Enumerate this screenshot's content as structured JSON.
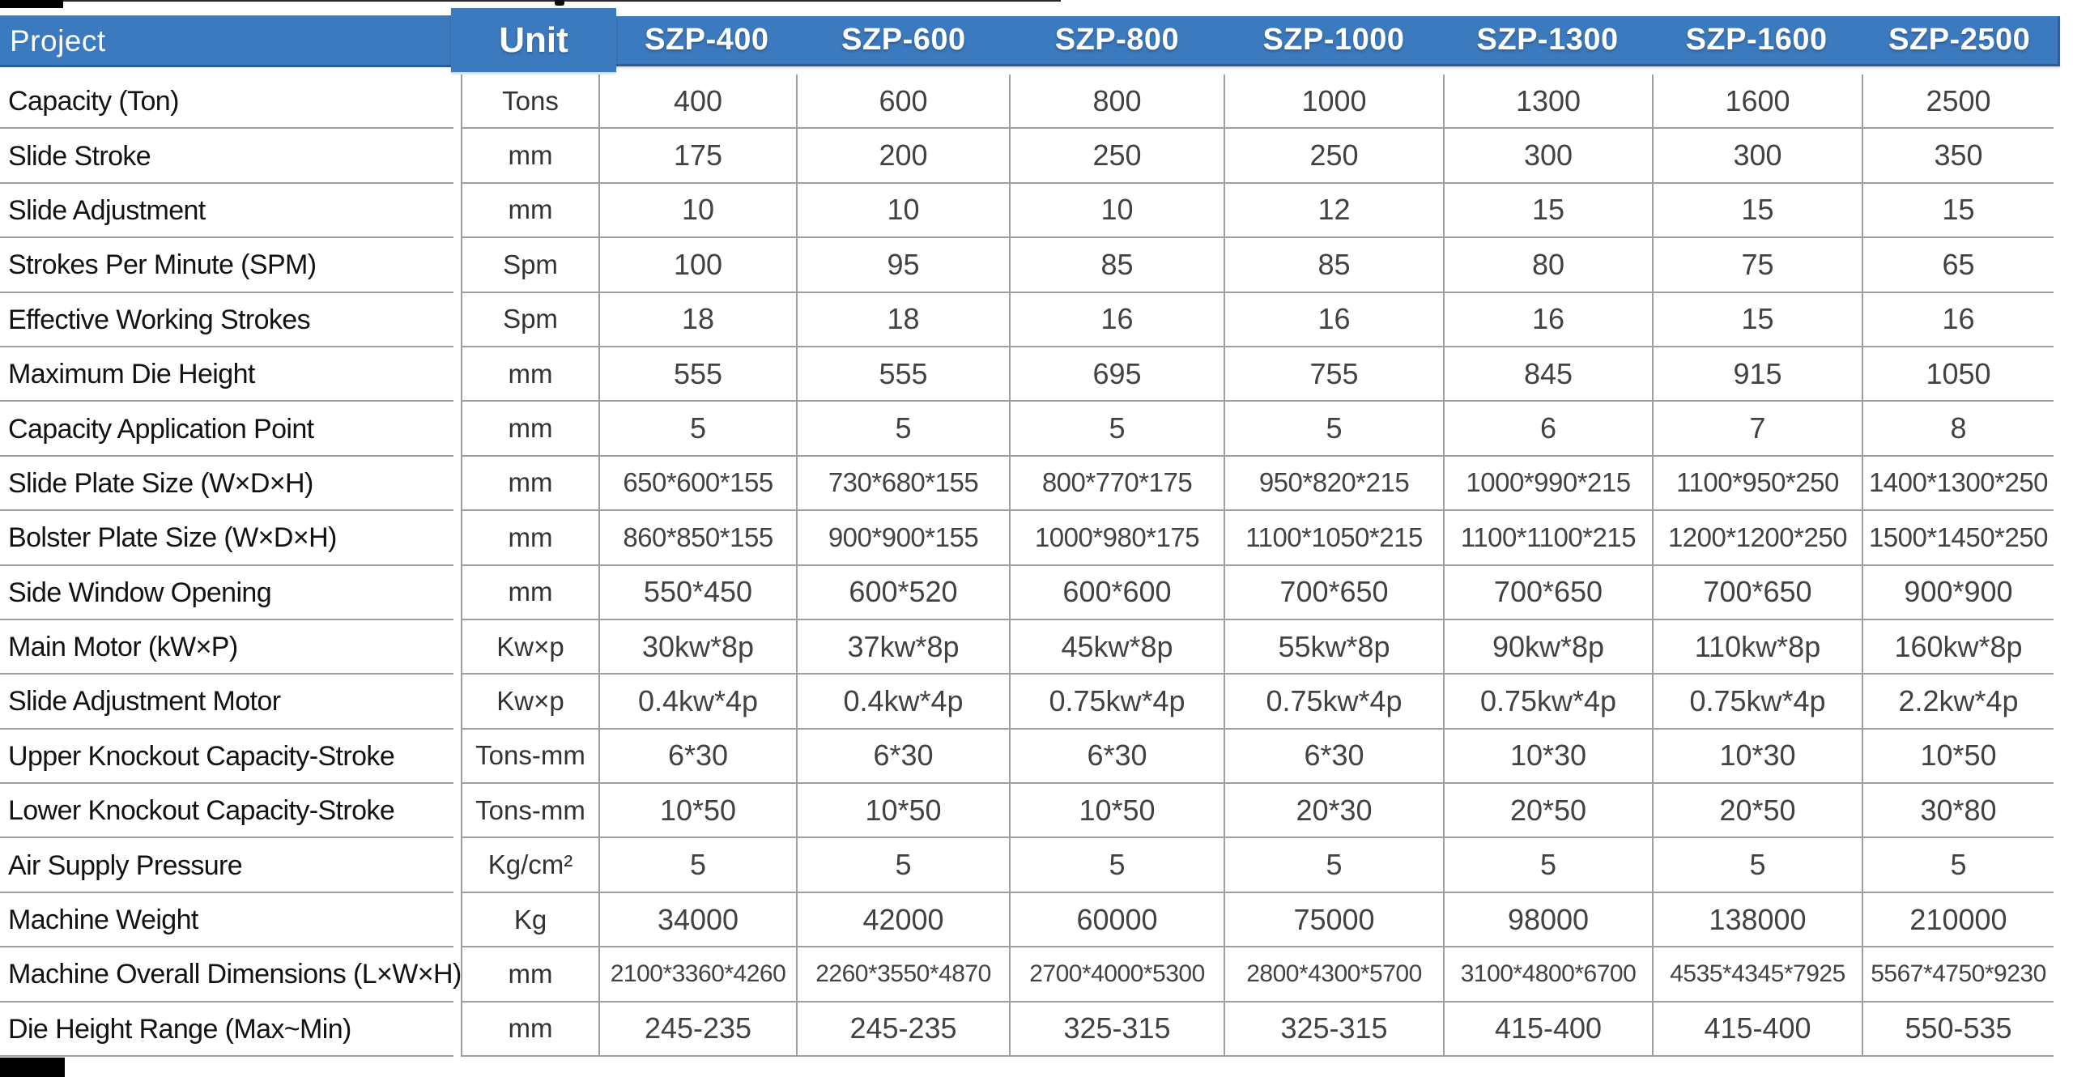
{
  "header": {
    "project_label": "Project",
    "unit_label": "Unit",
    "models": [
      "SZP-400",
      "SZP-600",
      "SZP-800",
      "SZP-1000",
      "SZP-1300",
      "SZP-1600",
      "SZP-2500"
    ]
  },
  "rows": [
    {
      "label": "Capacity (Ton)",
      "unit": "Tons",
      "values": [
        "400",
        "600",
        "800",
        "1000",
        "1300",
        "1600",
        "2500"
      ]
    },
    {
      "label": "Slide Stroke",
      "unit": "mm",
      "values": [
        "175",
        "200",
        "250",
        "250",
        "300",
        "300",
        "350"
      ]
    },
    {
      "label": "Slide Adjustment",
      "unit": "mm",
      "values": [
        "10",
        "10",
        "10",
        "12",
        "15",
        "15",
        "15"
      ]
    },
    {
      "label": "Strokes Per Minute (SPM)",
      "unit": "Spm",
      "values": [
        "100",
        "95",
        "85",
        "85",
        "80",
        "75",
        "65"
      ]
    },
    {
      "label": "Effective Working Strokes",
      "unit": "Spm",
      "values": [
        "18",
        "18",
        "16",
        "16",
        "16",
        "15",
        "16"
      ]
    },
    {
      "label": "Maximum Die Height",
      "unit": "mm",
      "values": [
        "555",
        "555",
        "695",
        "755",
        "845",
        "915",
        "1050"
      ]
    },
    {
      "label": "Capacity Application Point",
      "unit": "mm",
      "values": [
        "5",
        "5",
        "5",
        "5",
        "6",
        "7",
        "8"
      ]
    },
    {
      "label": "Slide Plate Size (W×D×H)",
      "unit": "mm",
      "values": [
        "650*600*155",
        "730*680*155",
        "800*770*175",
        "950*820*215",
        "1000*990*215",
        "1100*950*250",
        "1400*1300*250"
      ]
    },
    {
      "label": "Bolster Plate Size (W×D×H)",
      "unit": "mm",
      "values": [
        "860*850*155",
        "900*900*155",
        "1000*980*175",
        "1100*1050*215",
        "1100*1100*215",
        "1200*1200*250",
        "1500*1450*250"
      ]
    },
    {
      "label": "Side Window Opening",
      "unit": "mm",
      "values": [
        "550*450",
        "600*520",
        "600*600",
        "700*650",
        "700*650",
        "700*650",
        "900*900"
      ]
    },
    {
      "label": "Main Motor (kW×P)",
      "unit": "Kw×p",
      "values": [
        "30kw*8p",
        "37kw*8p",
        "45kw*8p",
        "55kw*8p",
        "90kw*8p",
        "110kw*8p",
        "160kw*8p"
      ]
    },
    {
      "label": "Slide Adjustment Motor",
      "unit": "Kw×p",
      "values": [
        "0.4kw*4p",
        "0.4kw*4p",
        "0.75kw*4p",
        "0.75kw*4p",
        "0.75kw*4p",
        "0.75kw*4p",
        "2.2kw*4p"
      ]
    },
    {
      "label": "Upper Knockout Capacity-Stroke",
      "unit": "Tons-mm",
      "values": [
        "6*30",
        "6*30",
        "6*30",
        "6*30",
        "10*30",
        "10*30",
        "10*50"
      ]
    },
    {
      "label": "Lower Knockout Capacity-Stroke",
      "unit": "Tons-mm",
      "values": [
        "10*50",
        "10*50",
        "10*50",
        "20*30",
        "20*50",
        "20*50",
        "30*80"
      ]
    },
    {
      "label": "Air Supply Pressure",
      "unit": "Kg/cm²",
      "values": [
        "5",
        "5",
        "5",
        "5",
        "5",
        "5",
        "5"
      ]
    },
    {
      "label": "Machine Weight",
      "unit": "Kg",
      "values": [
        "34000",
        "42000",
        "60000",
        "75000",
        "98000",
        "138000",
        "210000"
      ]
    },
    {
      "label": "Machine Overall Dimensions (L×W×H)",
      "unit": "mm",
      "values": [
        "2100*3360*4260",
        "2260*3550*4870",
        "2700*4000*5300",
        "2800*4300*5700",
        "3100*4800*6700",
        "4535*4345*7925",
        "5567*4750*9230"
      ]
    },
    {
      "label": "Die Height Range (Max~Min)",
      "unit": "mm",
      "values": [
        "245-235",
        "245-235",
        "325-315",
        "325-315",
        "415-400",
        "415-400",
        "550-535"
      ]
    }
  ],
  "colors": {
    "header_blue": "#3c7abf",
    "header_blue_dark": "#2b5e9b",
    "grid_line": "#9f9f9f",
    "label_text": "#121212",
    "value_text": "#424242"
  }
}
